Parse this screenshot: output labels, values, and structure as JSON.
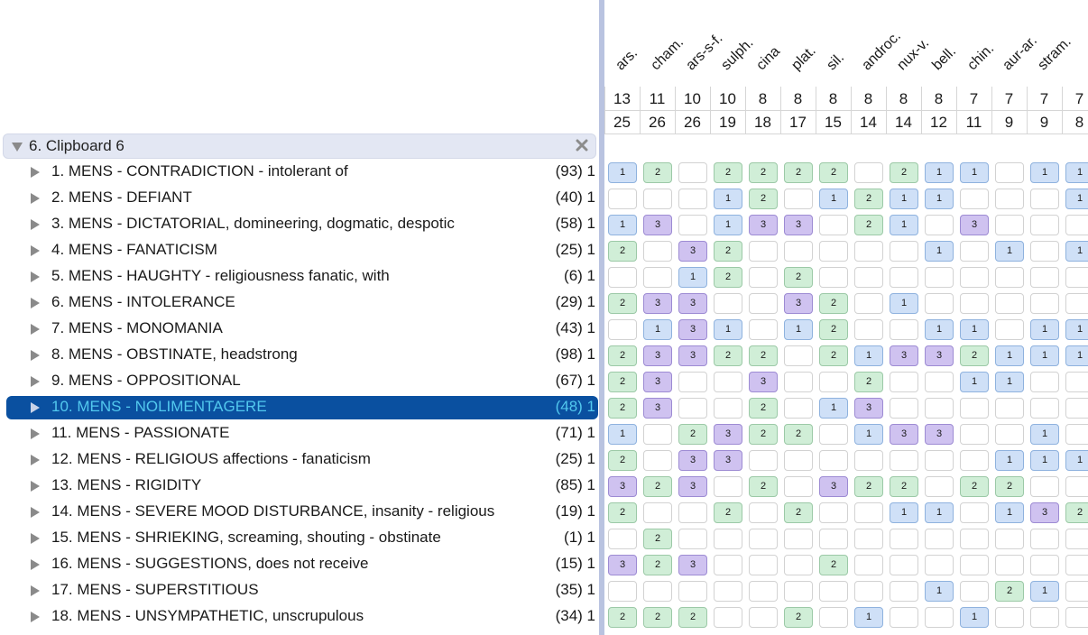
{
  "clipboard": {
    "title": "6. Clipboard 6"
  },
  "remedies": [
    {
      "name": "ars.",
      "score": "13",
      "count": "25"
    },
    {
      "name": "cham.",
      "score": "11",
      "count": "26"
    },
    {
      "name": "ars-s-f.",
      "score": "10",
      "count": "26"
    },
    {
      "name": "sulph.",
      "score": "10",
      "count": "19"
    },
    {
      "name": "cina",
      "score": "8",
      "count": "18"
    },
    {
      "name": "plat.",
      "score": "8",
      "count": "17"
    },
    {
      "name": "sil.",
      "score": "8",
      "count": "15"
    },
    {
      "name": "androc.",
      "score": "8",
      "count": "14"
    },
    {
      "name": "nux-v.",
      "score": "8",
      "count": "14"
    },
    {
      "name": "bell.",
      "score": "8",
      "count": "12"
    },
    {
      "name": "chin.",
      "score": "7",
      "count": "11"
    },
    {
      "name": "aur-ar.",
      "score": "7",
      "count": "9"
    },
    {
      "name": "stram.",
      "score": "7",
      "count": "9"
    },
    {
      "name": "",
      "score": "7",
      "count": "8"
    }
  ],
  "rubrics": [
    {
      "label": "1. MENS - CONTRADICTION - intolerant of",
      "count": "(93) 1",
      "grades": [
        1,
        2,
        0,
        2,
        2,
        2,
        2,
        0,
        2,
        1,
        1,
        0,
        1,
        1
      ]
    },
    {
      "label": "2. MENS - DEFIANT",
      "count": "(40) 1",
      "grades": [
        0,
        0,
        0,
        1,
        2,
        0,
        1,
        2,
        1,
        1,
        0,
        0,
        0,
        1
      ]
    },
    {
      "label": "3. MENS - DICTATORIAL, domineering, dogmatic, despotic",
      "count": "(58) 1",
      "grades": [
        1,
        3,
        0,
        1,
        3,
        3,
        0,
        2,
        1,
        0,
        3,
        0,
        0,
        0
      ]
    },
    {
      "label": "4. MENS - FANATICISM",
      "count": "(25) 1",
      "grades": [
        2,
        0,
        3,
        2,
        0,
        0,
        0,
        0,
        0,
        1,
        0,
        1,
        0,
        1
      ]
    },
    {
      "label": "5. MENS - HAUGHTY - religiousness fanatic, with",
      "count": "(6) 1",
      "grades": [
        0,
        0,
        1,
        2,
        0,
        2,
        0,
        0,
        0,
        0,
        0,
        0,
        0,
        0
      ]
    },
    {
      "label": "6. MENS - INTOLERANCE",
      "count": "(29) 1",
      "grades": [
        2,
        3,
        3,
        0,
        0,
        3,
        2,
        0,
        1,
        0,
        0,
        0,
        0,
        0
      ]
    },
    {
      "label": "7. MENS - MONOMANIA",
      "count": "(43) 1",
      "grades": [
        0,
        1,
        3,
        1,
        0,
        1,
        2,
        0,
        0,
        1,
        1,
        0,
        1,
        1
      ]
    },
    {
      "label": "8. MENS - OBSTINATE, headstrong",
      "count": "(98) 1",
      "grades": [
        2,
        3,
        3,
        2,
        2,
        0,
        2,
        1,
        3,
        3,
        2,
        1,
        1,
        1
      ]
    },
    {
      "label": "9. MENS - OPPOSITIONAL",
      "count": "(67) 1",
      "grades": [
        2,
        3,
        0,
        0,
        3,
        0,
        0,
        2,
        0,
        0,
        1,
        1,
        0,
        0
      ]
    },
    {
      "label": "10. MENS - NOLIMENTAGERE",
      "count": "(48) 1",
      "grades": [
        2,
        3,
        0,
        0,
        2,
        0,
        1,
        3,
        0,
        0,
        0,
        0,
        0,
        0
      ]
    },
    {
      "label": "11. MENS - PASSIONATE",
      "count": "(71) 1",
      "grades": [
        1,
        0,
        2,
        3,
        2,
        2,
        0,
        1,
        3,
        3,
        0,
        0,
        1,
        0
      ]
    },
    {
      "label": "12. MENS - RELIGIOUS affections - fanaticism",
      "count": "(25) 1",
      "grades": [
        2,
        0,
        3,
        3,
        0,
        0,
        0,
        0,
        0,
        0,
        0,
        1,
        1,
        1
      ]
    },
    {
      "label": "13. MENS - RIGIDITY",
      "count": "(85) 1",
      "grades": [
        3,
        2,
        3,
        0,
        2,
        0,
        3,
        2,
        2,
        0,
        2,
        2,
        0,
        0
      ]
    },
    {
      "label": "14. MENS - SEVERE MOOD DISTURBANCE, insanity - religious",
      "count": "(19) 1",
      "grades": [
        2,
        0,
        0,
        2,
        0,
        2,
        0,
        0,
        1,
        1,
        0,
        1,
        3,
        2
      ]
    },
    {
      "label": "15. MENS - SHRIEKING, screaming, shouting - obstinate",
      "count": "(1) 1",
      "grades": [
        0,
        2,
        0,
        0,
        0,
        0,
        0,
        0,
        0,
        0,
        0,
        0,
        0,
        0
      ]
    },
    {
      "label": "16. MENS - SUGGESTIONS, does not receive",
      "count": "(15) 1",
      "grades": [
        3,
        2,
        3,
        0,
        0,
        0,
        2,
        0,
        0,
        0,
        0,
        0,
        0,
        0
      ]
    },
    {
      "label": "17. MENS - SUPERSTITIOUS",
      "count": "(35) 1",
      "grades": [
        0,
        0,
        0,
        0,
        0,
        0,
        0,
        0,
        0,
        1,
        0,
        2,
        1,
        0
      ]
    },
    {
      "label": "18. MENS - UNSYMPATHETIC, unscrupulous",
      "count": "(34) 1",
      "grades": [
        2,
        2,
        2,
        0,
        0,
        2,
        0,
        1,
        0,
        0,
        1,
        0,
        0,
        0
      ]
    }
  ],
  "selected_rubric_index": 9,
  "colors": {
    "selection_bg": "#0a50a0",
    "selection_text": "#52c8ee",
    "grade1": "#cfe0f7",
    "grade2": "#d0eed7",
    "grade3": "#cfc2f0"
  }
}
